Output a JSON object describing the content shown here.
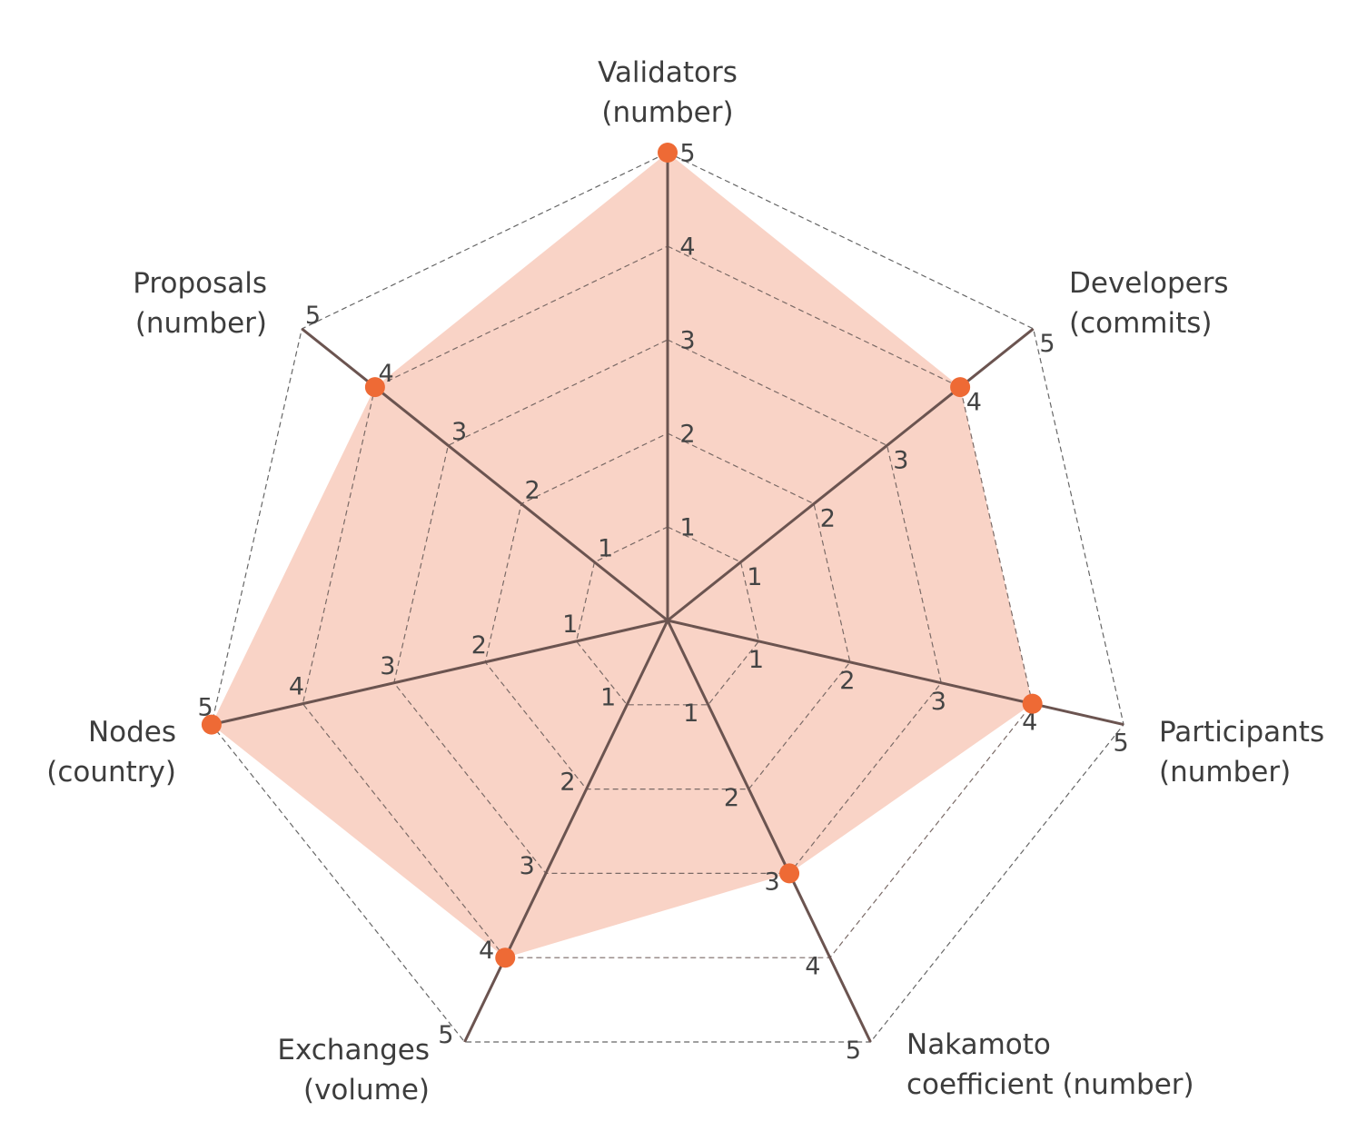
{
  "chart_data": {
    "type": "radar",
    "axes": [
      {
        "label": [
          "Validators",
          "(number)"
        ],
        "value": 5
      },
      {
        "label": [
          "Developers",
          "(commits)"
        ],
        "value": 4
      },
      {
        "label": [
          "Participants",
          "(number)"
        ],
        "value": 4
      },
      {
        "label": [
          "Nakamoto",
          "coefficient  (number)"
        ],
        "value": 3
      },
      {
        "label": [
          "Exchanges",
          "(volume)"
        ],
        "value": 4
      },
      {
        "label": [
          "Nodes",
          "(country)"
        ],
        "value": 5
      },
      {
        "label": [
          "Proposals",
          "(number)"
        ],
        "value": 4
      }
    ],
    "range": [
      0,
      5
    ],
    "ticks": [
      "1",
      "2",
      "3",
      "4",
      "5"
    ],
    "grid": true,
    "colors": {
      "fill": "#f9d3c6",
      "point": "#ee6a35",
      "axis": "#6b5450",
      "grid": "#7a6a66"
    }
  }
}
